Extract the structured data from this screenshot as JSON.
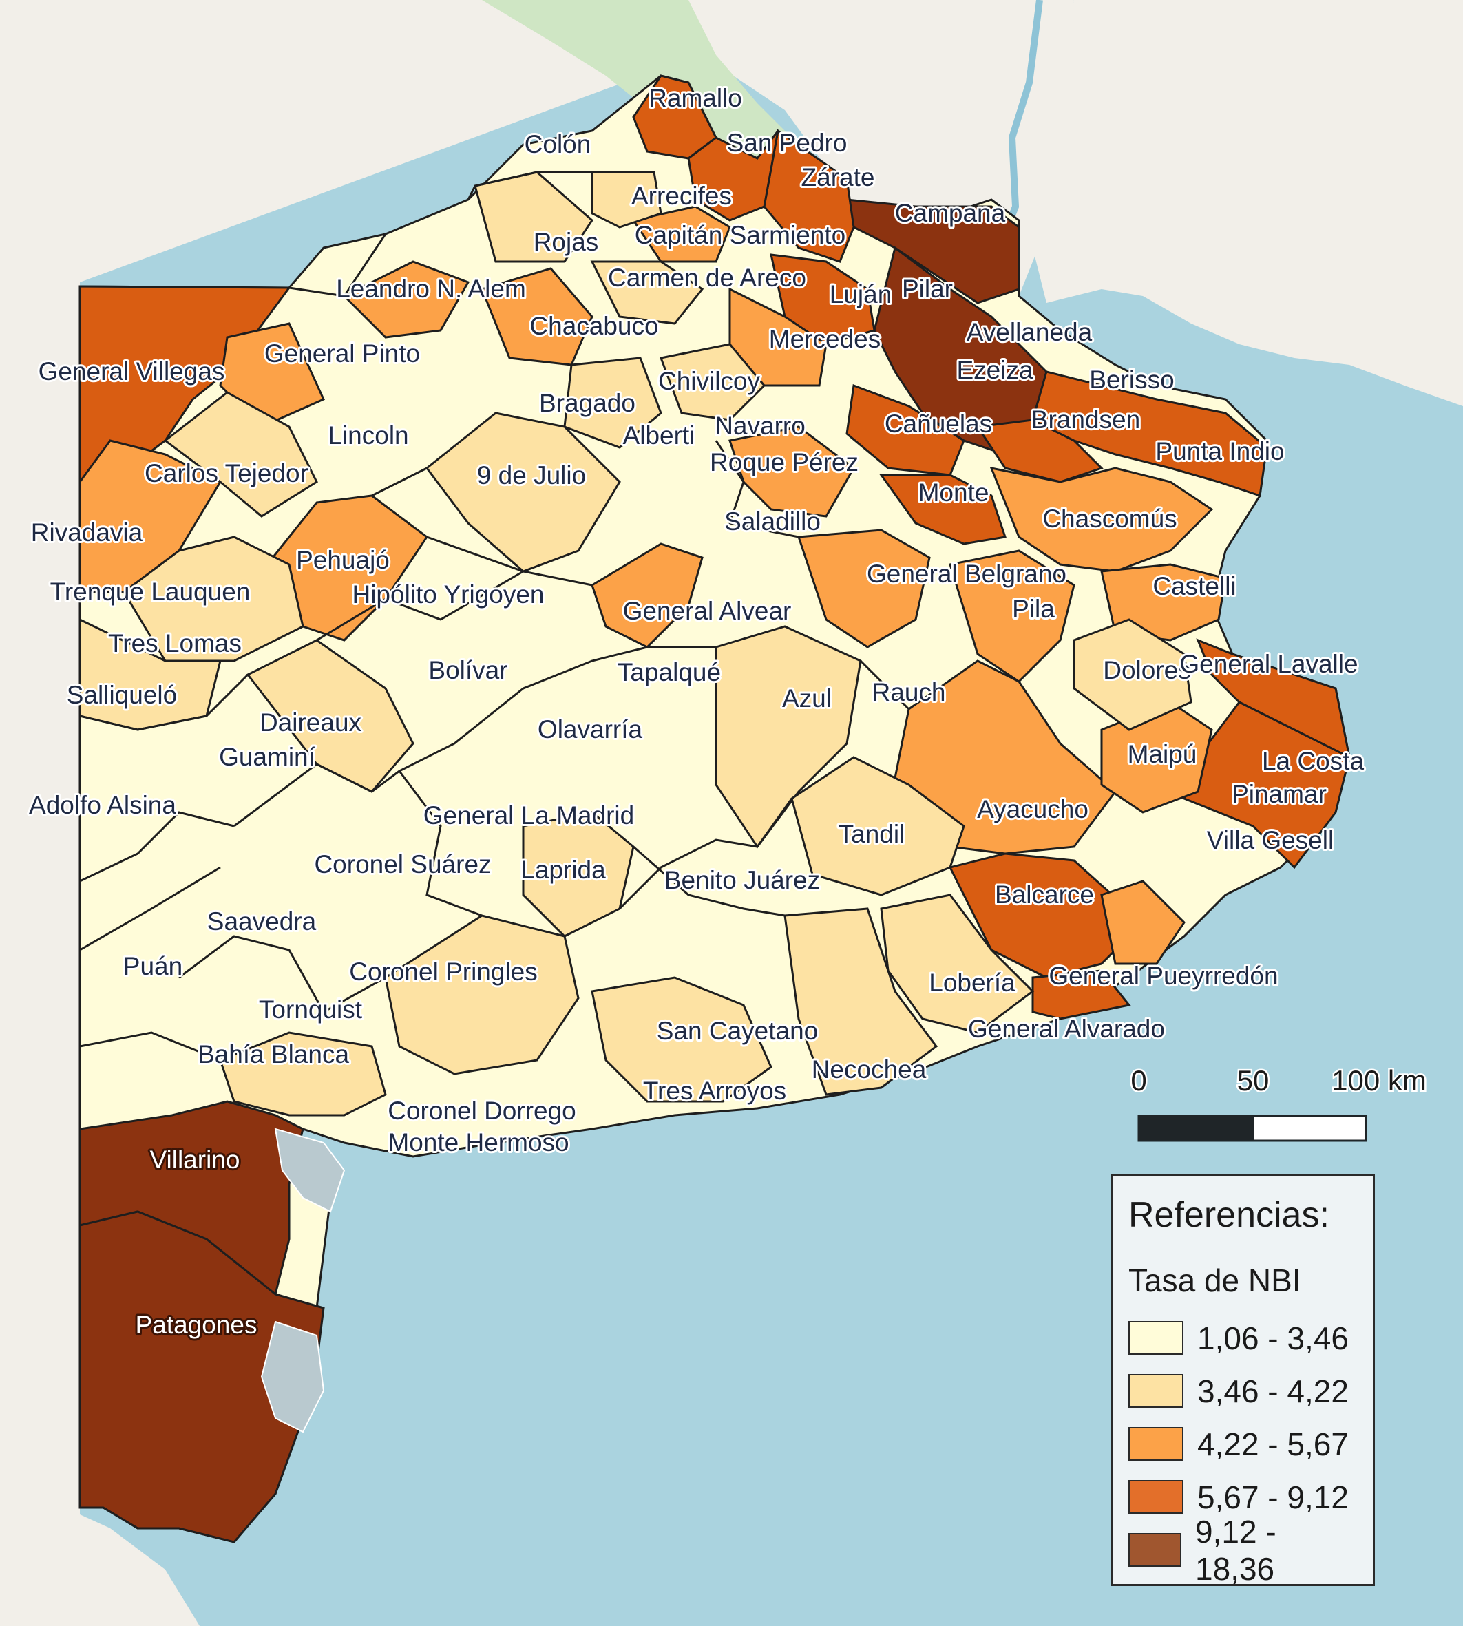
{
  "legend": {
    "title": "Referencias:",
    "subtitle": "Tasa de NBI",
    "classes": [
      {
        "range": "1,06 - 3,46",
        "color": "#fffcd9"
      },
      {
        "range": "3,46 - 4,22",
        "color": "#fde2a3"
      },
      {
        "range": "4,22 - 5,67",
        "color": "#fca248"
      },
      {
        "range": "5,67 - 9,12",
        "color": "#e36f2a"
      },
      {
        "range": "9,12 - 18,36",
        "color": "#a0562f"
      }
    ]
  },
  "scale_bar": {
    "labels": [
      "0",
      "50",
      "100 km"
    ]
  },
  "colors": {
    "sea": "#aad3df",
    "land_outside": "#f2efe9",
    "border": "#1e1e1e",
    "class1": "#fffcd9",
    "class2": "#fde2a3",
    "class3": "#fca248",
    "class4": "#e36f2a",
    "class5": "#a0562f",
    "class5_map": "#8c3310",
    "class4_map": "#d95d12"
  },
  "partidos": [
    {
      "name": "Ramallo"
    },
    {
      "name": "Colón"
    },
    {
      "name": "San Pedro"
    },
    {
      "name": "Zárate"
    },
    {
      "name": "Arrecifes"
    },
    {
      "name": "Campana"
    },
    {
      "name": "Rojas"
    },
    {
      "name": "Capitán Sarmiento"
    },
    {
      "name": "Leandro N. Alem"
    },
    {
      "name": "Carmen de Areco"
    },
    {
      "name": "Luján"
    },
    {
      "name": "Pilar"
    },
    {
      "name": "Chacabuco"
    },
    {
      "name": "Avellaneda"
    },
    {
      "name": "General Pinto"
    },
    {
      "name": "Mercedes"
    },
    {
      "name": "General Villegas"
    },
    {
      "name": "Ezeiza"
    },
    {
      "name": "Chivilcoy"
    },
    {
      "name": "Berisso"
    },
    {
      "name": "Bragado"
    },
    {
      "name": "Brandsen"
    },
    {
      "name": "Navarro"
    },
    {
      "name": "Cañuelas"
    },
    {
      "name": "Lincoln"
    },
    {
      "name": "Alberti"
    },
    {
      "name": "Punta Indio"
    },
    {
      "name": "Roque Pérez"
    },
    {
      "name": "Carlos Tejedor"
    },
    {
      "name": "9 de Julio"
    },
    {
      "name": "Monte"
    },
    {
      "name": "Saladillo"
    },
    {
      "name": "Chascomús"
    },
    {
      "name": "Rivadavia"
    },
    {
      "name": "Pehuajó"
    },
    {
      "name": "General Belgrano"
    },
    {
      "name": "Trenque Lauquen"
    },
    {
      "name": "Hipólito Yrigoyen"
    },
    {
      "name": "Castelli"
    },
    {
      "name": "Pila"
    },
    {
      "name": "General Alvear"
    },
    {
      "name": "Tres Lomas"
    },
    {
      "name": "Bolívar"
    },
    {
      "name": "Tapalqué"
    },
    {
      "name": "Dolores"
    },
    {
      "name": "General Lavalle"
    },
    {
      "name": "Salliqueló"
    },
    {
      "name": "Azul"
    },
    {
      "name": "Rauch"
    },
    {
      "name": "Daireaux"
    },
    {
      "name": "Olavarría"
    },
    {
      "name": "Guaminí"
    },
    {
      "name": "Maipú"
    },
    {
      "name": "La Costa"
    },
    {
      "name": "Pinamar"
    },
    {
      "name": "Adolfo Alsina"
    },
    {
      "name": "Ayacucho"
    },
    {
      "name": "General La Madrid"
    },
    {
      "name": "Tandil"
    },
    {
      "name": "Villa Gesell"
    },
    {
      "name": "Coronel Suárez"
    },
    {
      "name": "Laprida"
    },
    {
      "name": "Benito Juárez"
    },
    {
      "name": "Balcarce"
    },
    {
      "name": "Saavedra"
    },
    {
      "name": "Puán"
    },
    {
      "name": "Coronel Pringles"
    },
    {
      "name": "General Pueyrredón"
    },
    {
      "name": "Lobería"
    },
    {
      "name": "Tornquist"
    },
    {
      "name": "General Alvarado"
    },
    {
      "name": "San Cayetano"
    },
    {
      "name": "Bahía Blanca"
    },
    {
      "name": "Necochea"
    },
    {
      "name": "Tres Arroyos"
    },
    {
      "name": "Coronel Dorrego"
    },
    {
      "name": "Monte Hermoso"
    },
    {
      "name": "Villarino"
    },
    {
      "name": "Patagones"
    }
  ]
}
